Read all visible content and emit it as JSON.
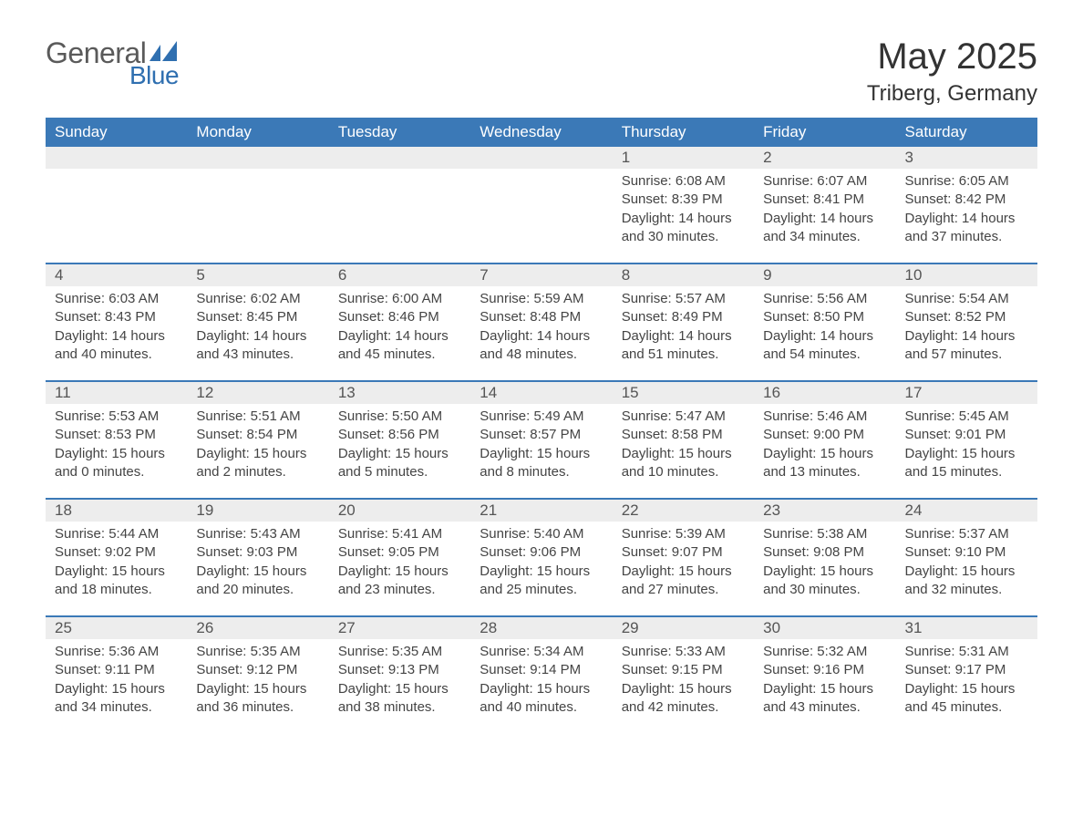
{
  "logo": {
    "general": "General",
    "blue": "Blue",
    "mark_color": "#2f6fb0"
  },
  "header": {
    "month": "May 2025",
    "location": "Triberg, Germany"
  },
  "weekdays": [
    "Sunday",
    "Monday",
    "Tuesday",
    "Wednesday",
    "Thursday",
    "Friday",
    "Saturday"
  ],
  "colors": {
    "header_bg": "#3b79b7",
    "header_text": "#ffffff",
    "daynum_bg": "#ededed",
    "border_top": "#3b79b7",
    "text": "#333333"
  },
  "weeks": [
    {
      "days": [
        null,
        null,
        null,
        null,
        {
          "n": "1",
          "sunrise": "Sunrise: 6:08 AM",
          "sunset": "Sunset: 8:39 PM",
          "daylight": "Daylight: 14 hours and 30 minutes."
        },
        {
          "n": "2",
          "sunrise": "Sunrise: 6:07 AM",
          "sunset": "Sunset: 8:41 PM",
          "daylight": "Daylight: 14 hours and 34 minutes."
        },
        {
          "n": "3",
          "sunrise": "Sunrise: 6:05 AM",
          "sunset": "Sunset: 8:42 PM",
          "daylight": "Daylight: 14 hours and 37 minutes."
        }
      ]
    },
    {
      "days": [
        {
          "n": "4",
          "sunrise": "Sunrise: 6:03 AM",
          "sunset": "Sunset: 8:43 PM",
          "daylight": "Daylight: 14 hours and 40 minutes."
        },
        {
          "n": "5",
          "sunrise": "Sunrise: 6:02 AM",
          "sunset": "Sunset: 8:45 PM",
          "daylight": "Daylight: 14 hours and 43 minutes."
        },
        {
          "n": "6",
          "sunrise": "Sunrise: 6:00 AM",
          "sunset": "Sunset: 8:46 PM",
          "daylight": "Daylight: 14 hours and 45 minutes."
        },
        {
          "n": "7",
          "sunrise": "Sunrise: 5:59 AM",
          "sunset": "Sunset: 8:48 PM",
          "daylight": "Daylight: 14 hours and 48 minutes."
        },
        {
          "n": "8",
          "sunrise": "Sunrise: 5:57 AM",
          "sunset": "Sunset: 8:49 PM",
          "daylight": "Daylight: 14 hours and 51 minutes."
        },
        {
          "n": "9",
          "sunrise": "Sunrise: 5:56 AM",
          "sunset": "Sunset: 8:50 PM",
          "daylight": "Daylight: 14 hours and 54 minutes."
        },
        {
          "n": "10",
          "sunrise": "Sunrise: 5:54 AM",
          "sunset": "Sunset: 8:52 PM",
          "daylight": "Daylight: 14 hours and 57 minutes."
        }
      ]
    },
    {
      "days": [
        {
          "n": "11",
          "sunrise": "Sunrise: 5:53 AM",
          "sunset": "Sunset: 8:53 PM",
          "daylight": "Daylight: 15 hours and 0 minutes."
        },
        {
          "n": "12",
          "sunrise": "Sunrise: 5:51 AM",
          "sunset": "Sunset: 8:54 PM",
          "daylight": "Daylight: 15 hours and 2 minutes."
        },
        {
          "n": "13",
          "sunrise": "Sunrise: 5:50 AM",
          "sunset": "Sunset: 8:56 PM",
          "daylight": "Daylight: 15 hours and 5 minutes."
        },
        {
          "n": "14",
          "sunrise": "Sunrise: 5:49 AM",
          "sunset": "Sunset: 8:57 PM",
          "daylight": "Daylight: 15 hours and 8 minutes."
        },
        {
          "n": "15",
          "sunrise": "Sunrise: 5:47 AM",
          "sunset": "Sunset: 8:58 PM",
          "daylight": "Daylight: 15 hours and 10 minutes."
        },
        {
          "n": "16",
          "sunrise": "Sunrise: 5:46 AM",
          "sunset": "Sunset: 9:00 PM",
          "daylight": "Daylight: 15 hours and 13 minutes."
        },
        {
          "n": "17",
          "sunrise": "Sunrise: 5:45 AM",
          "sunset": "Sunset: 9:01 PM",
          "daylight": "Daylight: 15 hours and 15 minutes."
        }
      ]
    },
    {
      "days": [
        {
          "n": "18",
          "sunrise": "Sunrise: 5:44 AM",
          "sunset": "Sunset: 9:02 PM",
          "daylight": "Daylight: 15 hours and 18 minutes."
        },
        {
          "n": "19",
          "sunrise": "Sunrise: 5:43 AM",
          "sunset": "Sunset: 9:03 PM",
          "daylight": "Daylight: 15 hours and 20 minutes."
        },
        {
          "n": "20",
          "sunrise": "Sunrise: 5:41 AM",
          "sunset": "Sunset: 9:05 PM",
          "daylight": "Daylight: 15 hours and 23 minutes."
        },
        {
          "n": "21",
          "sunrise": "Sunrise: 5:40 AM",
          "sunset": "Sunset: 9:06 PM",
          "daylight": "Daylight: 15 hours and 25 minutes."
        },
        {
          "n": "22",
          "sunrise": "Sunrise: 5:39 AM",
          "sunset": "Sunset: 9:07 PM",
          "daylight": "Daylight: 15 hours and 27 minutes."
        },
        {
          "n": "23",
          "sunrise": "Sunrise: 5:38 AM",
          "sunset": "Sunset: 9:08 PM",
          "daylight": "Daylight: 15 hours and 30 minutes."
        },
        {
          "n": "24",
          "sunrise": "Sunrise: 5:37 AM",
          "sunset": "Sunset: 9:10 PM",
          "daylight": "Daylight: 15 hours and 32 minutes."
        }
      ]
    },
    {
      "days": [
        {
          "n": "25",
          "sunrise": "Sunrise: 5:36 AM",
          "sunset": "Sunset: 9:11 PM",
          "daylight": "Daylight: 15 hours and 34 minutes."
        },
        {
          "n": "26",
          "sunrise": "Sunrise: 5:35 AM",
          "sunset": "Sunset: 9:12 PM",
          "daylight": "Daylight: 15 hours and 36 minutes."
        },
        {
          "n": "27",
          "sunrise": "Sunrise: 5:35 AM",
          "sunset": "Sunset: 9:13 PM",
          "daylight": "Daylight: 15 hours and 38 minutes."
        },
        {
          "n": "28",
          "sunrise": "Sunrise: 5:34 AM",
          "sunset": "Sunset: 9:14 PM",
          "daylight": "Daylight: 15 hours and 40 minutes."
        },
        {
          "n": "29",
          "sunrise": "Sunrise: 5:33 AM",
          "sunset": "Sunset: 9:15 PM",
          "daylight": "Daylight: 15 hours and 42 minutes."
        },
        {
          "n": "30",
          "sunrise": "Sunrise: 5:32 AM",
          "sunset": "Sunset: 9:16 PM",
          "daylight": "Daylight: 15 hours and 43 minutes."
        },
        {
          "n": "31",
          "sunrise": "Sunrise: 5:31 AM",
          "sunset": "Sunset: 9:17 PM",
          "daylight": "Daylight: 15 hours and 45 minutes."
        }
      ]
    }
  ]
}
